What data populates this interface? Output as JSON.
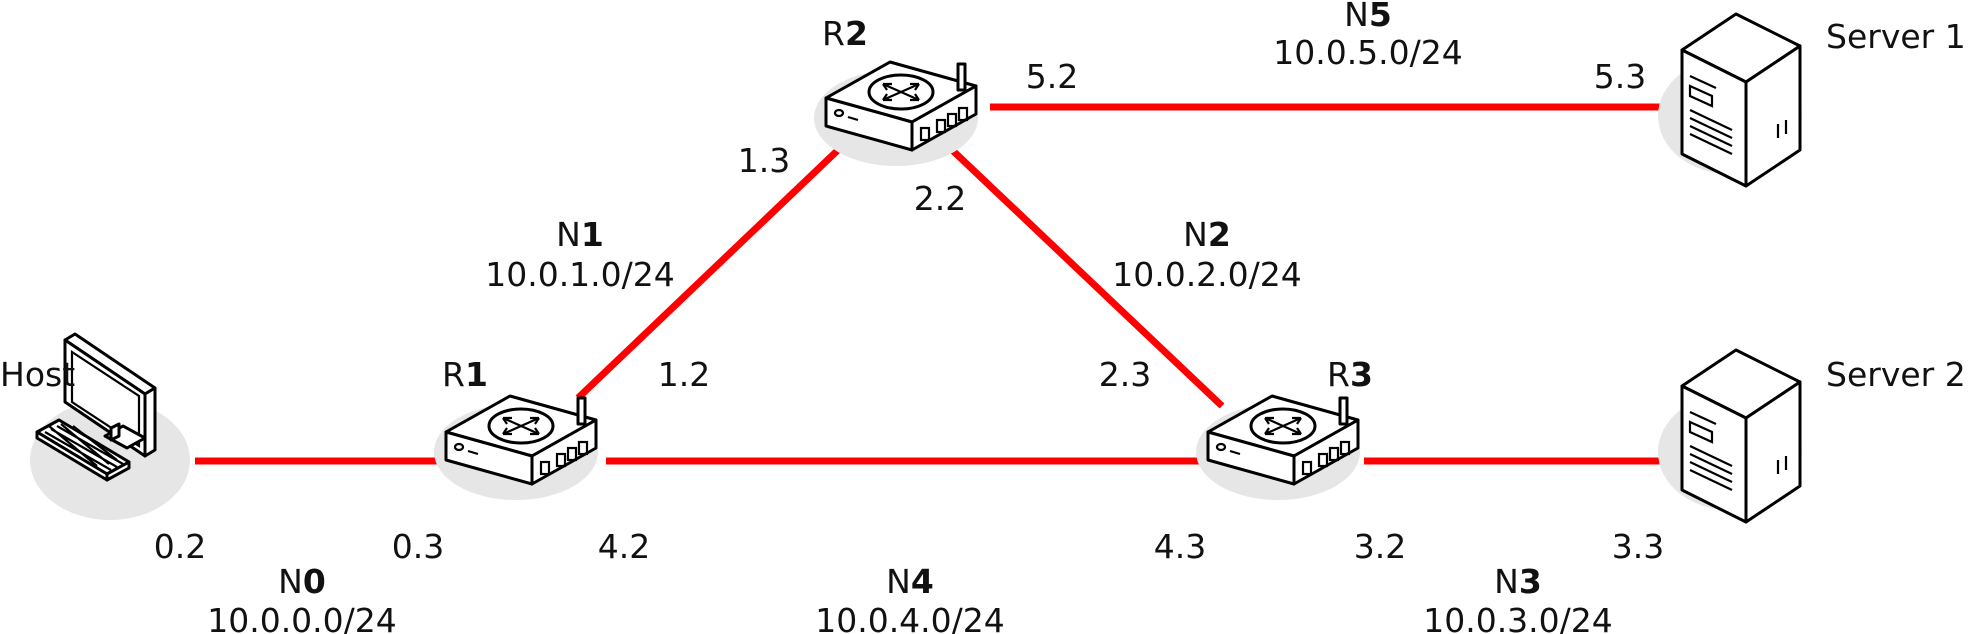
{
  "devices": {
    "host": {
      "label": "Host"
    },
    "r1": {
      "prefix": "R",
      "num": "1"
    },
    "r2": {
      "prefix": "R",
      "num": "2"
    },
    "r3": {
      "prefix": "R",
      "num": "3"
    },
    "server1": {
      "label": "Server 1"
    },
    "server2": {
      "label": "Server 2"
    }
  },
  "networks": {
    "n0": {
      "prefix": "N",
      "num": "0",
      "subnet": "10.0.0.0/24"
    },
    "n1": {
      "prefix": "N",
      "num": "1",
      "subnet": "10.0.1.0/24"
    },
    "n2": {
      "prefix": "N",
      "num": "2",
      "subnet": "10.0.2.0/24"
    },
    "n3": {
      "prefix": "N",
      "num": "3",
      "subnet": "10.0.3.0/24"
    },
    "n4": {
      "prefix": "N",
      "num": "4",
      "subnet": "10.0.4.0/24"
    },
    "n5": {
      "prefix": "N",
      "num": "5",
      "subnet": "10.0.5.0/24"
    }
  },
  "addresses": {
    "host_n0": "0.2",
    "r1_n0": "0.3",
    "r1_n4": "4.2",
    "r1_n1": "1.2",
    "r2_n1": "1.3",
    "r2_n2": "2.2",
    "r2_n5": "5.2",
    "r3_n2": "2.3",
    "r3_n4": "4.3",
    "r3_n3": "3.2",
    "server1_n5": "5.3",
    "server2_n3": "3.3"
  },
  "colors": {
    "link": "#ff0000",
    "icon_shadow": "#e6e6e6",
    "icon_stroke": "#000000"
  },
  "icons": {
    "host": "desktop-computer-icon",
    "router": "router-icon",
    "server": "tower-server-icon"
  }
}
